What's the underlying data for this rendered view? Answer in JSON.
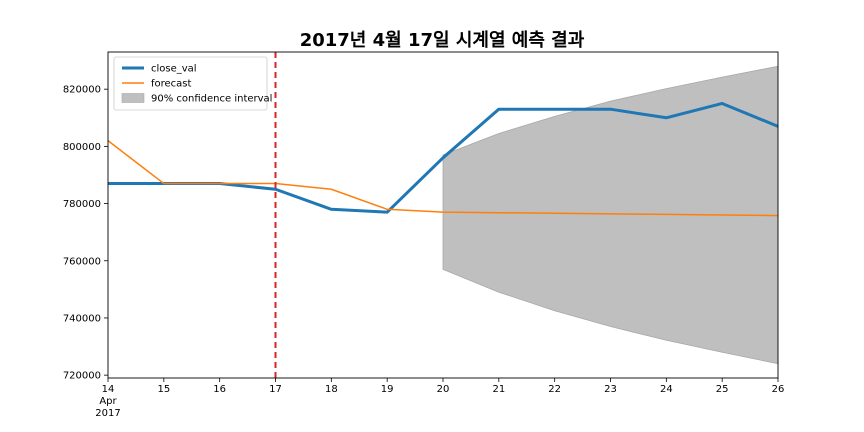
{
  "chart_data": {
    "type": "line",
    "title": "2017년 4월 17일 시계열 예측 결과",
    "x_ticks": [
      "14",
      "15",
      "16",
      "17",
      "18",
      "19",
      "20",
      "21",
      "22",
      "23",
      "24",
      "25",
      "26"
    ],
    "x_tick_sub": [
      "Apr",
      "2017"
    ],
    "xlim": [
      14,
      26
    ],
    "ylim": [
      719000,
      833000
    ],
    "y_ticks": [
      720000,
      740000,
      760000,
      780000,
      800000,
      820000
    ],
    "y_tick_labels": [
      "720000",
      "740000",
      "760000",
      "780000",
      "800000",
      "820000"
    ],
    "vline": {
      "x": 17,
      "color": "#d62728",
      "style": "dashed"
    },
    "series": [
      {
        "name": "close_val",
        "color": "#1f77b4",
        "x": [
          14,
          15,
          16,
          17,
          18,
          19,
          20,
          21,
          22,
          23,
          24,
          25,
          26
        ],
        "values": [
          787000,
          787000,
          787000,
          785000,
          778000,
          777000,
          796000,
          813000,
          813000,
          813000,
          810000,
          815000,
          807000
        ]
      },
      {
        "name": "forecast",
        "color": "#ff7f0e",
        "x": [
          14,
          15,
          16,
          17,
          18,
          19,
          20,
          21,
          22,
          23,
          24,
          25,
          26
        ],
        "values": [
          802000,
          787000,
          787000,
          787000,
          785000,
          778000,
          777000,
          776800,
          776600,
          776400,
          776200,
          776000,
          775800
        ]
      }
    ],
    "confidence_interval": {
      "name": "90% confidence interval",
      "color": "#bfbfbf",
      "x": [
        20,
        21,
        22,
        23,
        24,
        25,
        26
      ],
      "lower": [
        757000,
        749000,
        742500,
        737000,
        732200,
        728000,
        724000
      ],
      "upper": [
        797000,
        804500,
        810500,
        815800,
        820200,
        824200,
        828000
      ]
    },
    "legend": {
      "placement": "top-left",
      "entries": [
        "close_val",
        "forecast",
        "90% confidence interval"
      ]
    },
    "grid": false
  }
}
